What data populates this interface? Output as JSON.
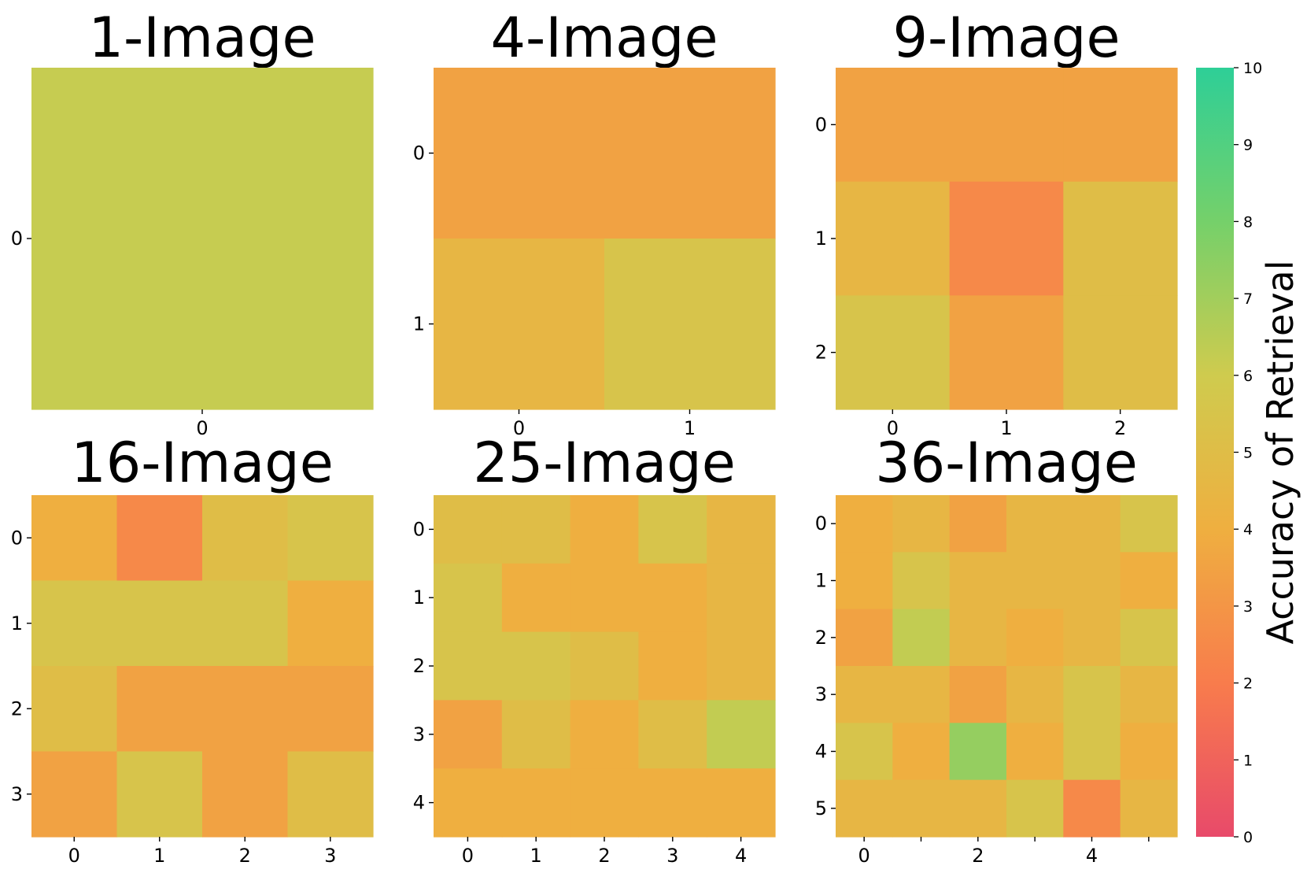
{
  "chart_data": [
    {
      "type": "heatmap",
      "title": "1-Image",
      "x_ticks": [
        "0"
      ],
      "y_ticks": [
        "0"
      ],
      "values": [
        [
          6.2
        ]
      ]
    },
    {
      "type": "heatmap",
      "title": "4-Image",
      "x_ticks": [
        "0",
        "1"
      ],
      "y_ticks": [
        "0",
        "1"
      ],
      "values": [
        [
          3.5,
          3.5
        ],
        [
          4.5,
          5.5
        ]
      ]
    },
    {
      "type": "heatmap",
      "title": "9-Image",
      "x_ticks": [
        "0",
        "1",
        "2"
      ],
      "y_ticks": [
        "0",
        "1",
        "2"
      ],
      "values": [
        [
          3.5,
          3.5,
          3.5
        ],
        [
          4.5,
          2.5,
          5.0
        ],
        [
          5.5,
          3.5,
          5.0
        ]
      ]
    },
    {
      "type": "heatmap",
      "title": "16-Image",
      "x_ticks": [
        "0",
        "1",
        "2",
        "3"
      ],
      "y_ticks": [
        "0",
        "1",
        "2",
        "3"
      ],
      "values": [
        [
          4.0,
          2.5,
          5.0,
          5.5
        ],
        [
          5.5,
          5.5,
          5.5,
          4.0
        ],
        [
          5.0,
          3.5,
          3.5,
          3.5
        ],
        [
          3.5,
          5.5,
          3.5,
          5.0
        ]
      ]
    },
    {
      "type": "heatmap",
      "title": "25-Image",
      "x_ticks": [
        "0",
        "1",
        "2",
        "3",
        "4"
      ],
      "y_ticks": [
        "0",
        "1",
        "2",
        "3",
        "4"
      ],
      "values": [
        [
          5.0,
          5.0,
          4.0,
          5.5,
          4.5
        ],
        [
          5.5,
          4.0,
          4.0,
          4.0,
          4.5
        ],
        [
          5.5,
          5.5,
          5.0,
          4.0,
          4.5
        ],
        [
          3.5,
          5.0,
          4.0,
          5.0,
          6.3
        ],
        [
          4.0,
          4.0,
          4.0,
          4.0,
          4.0
        ]
      ]
    },
    {
      "type": "heatmap",
      "title": "36-Image",
      "x_ticks": [
        "0",
        "",
        "2",
        "",
        "4",
        ""
      ],
      "y_ticks": [
        "0",
        "1",
        "2",
        "3",
        "4",
        "5"
      ],
      "values": [
        [
          4.0,
          4.5,
          3.5,
          4.5,
          4.5,
          5.5
        ],
        [
          4.0,
          5.5,
          4.5,
          4.5,
          4.5,
          4.0
        ],
        [
          3.5,
          6.3,
          4.5,
          4.0,
          4.5,
          5.5
        ],
        [
          4.5,
          4.5,
          3.5,
          4.5,
          5.5,
          4.5
        ],
        [
          5.5,
          4.0,
          7.3,
          4.0,
          5.5,
          4.0
        ],
        [
          4.5,
          4.5,
          4.5,
          5.5,
          2.5,
          4.5
        ]
      ]
    }
  ],
  "colorbar": {
    "label": "Accuracy of Retrieval",
    "min": 0,
    "max": 10,
    "ticks": [
      "0",
      "1",
      "2",
      "3",
      "4",
      "5",
      "6",
      "7",
      "8",
      "9",
      "10"
    ],
    "colors": [
      "#e84a6a",
      "#f87c4c",
      "#efaf40",
      "#cfcb4e",
      "#75d06a",
      "#2ecf97"
    ]
  }
}
